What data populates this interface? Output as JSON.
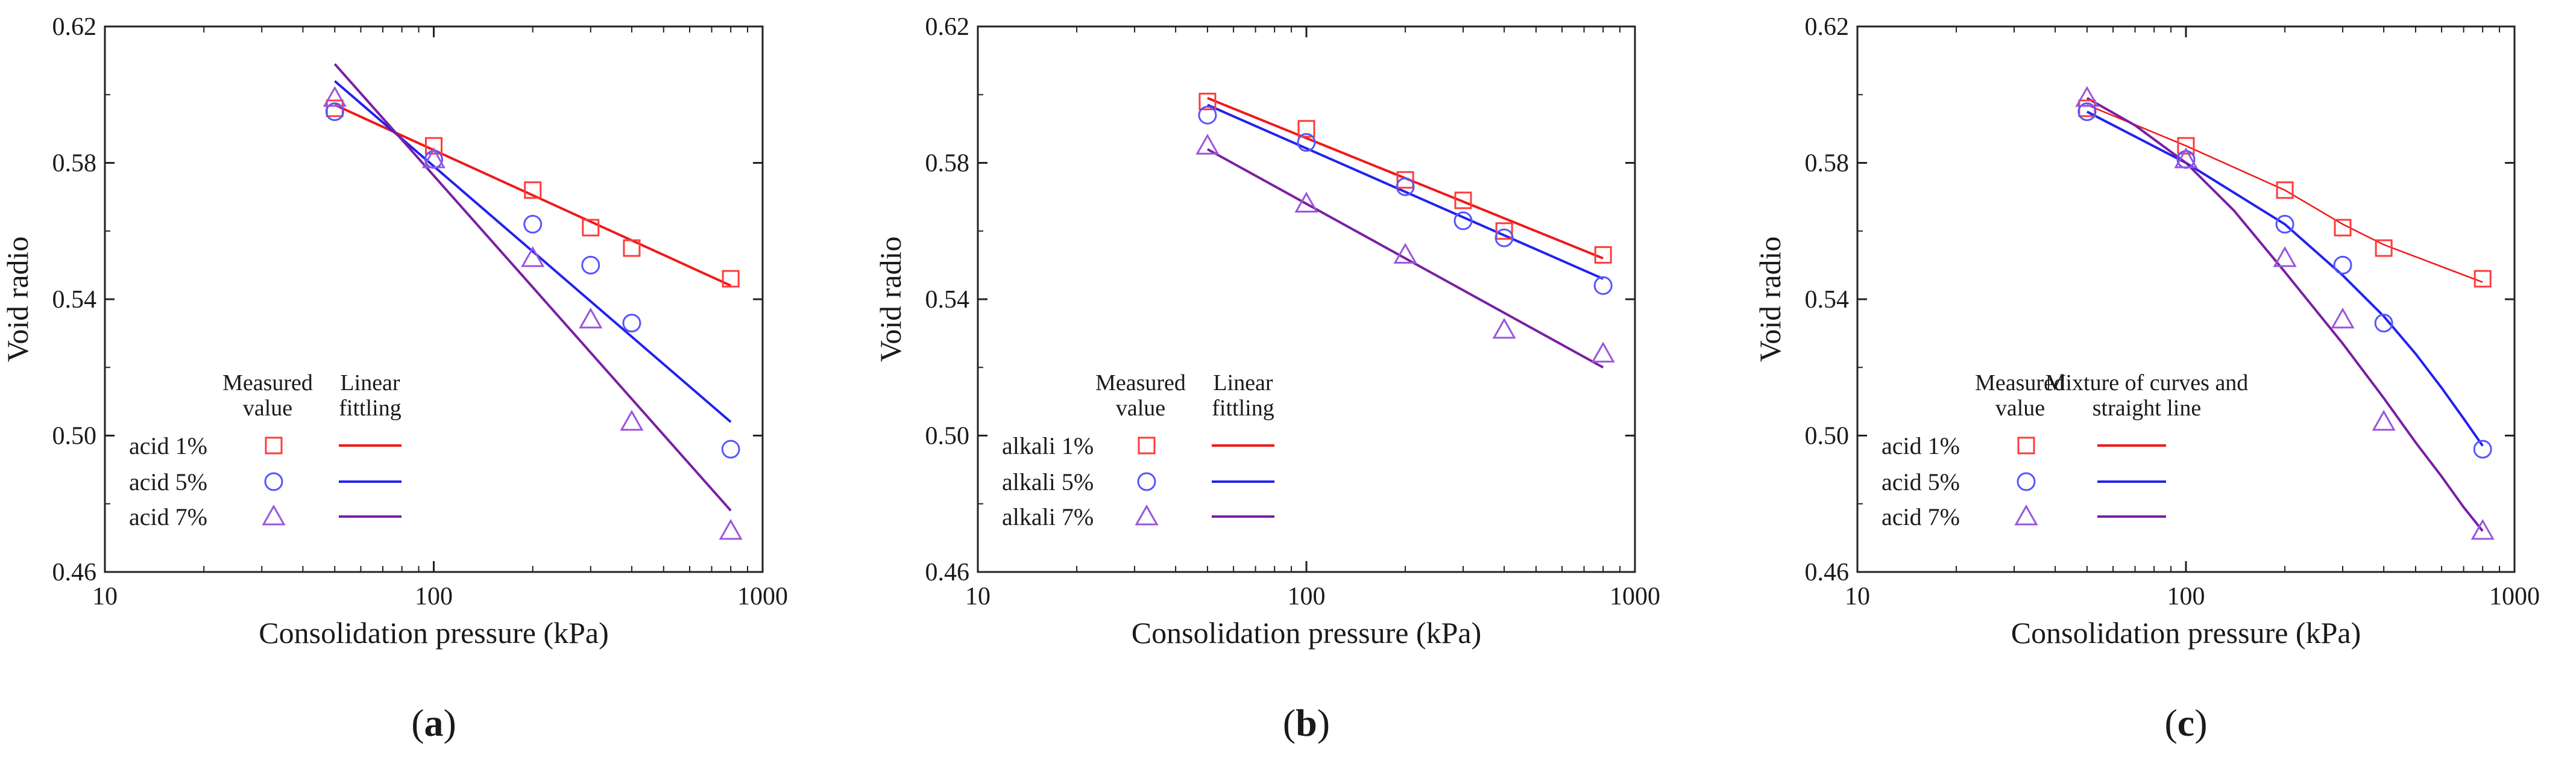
{
  "chart_data": [
    {
      "type": "scatter",
      "panel_label": "a",
      "xlabel": "Consolidation pressure (kPa)",
      "ylabel": "Void radio",
      "xscale": "log",
      "xlim": [
        10,
        1000
      ],
      "ylim": [
        0.46,
        0.62
      ],
      "xticks": [
        10,
        100,
        1000
      ],
      "xtick_labels": [
        "10",
        "100",
        "1000"
      ],
      "yticks": [
        0.46,
        0.5,
        0.54,
        0.58,
        0.62
      ],
      "ytick_labels": [
        "0.46",
        "0.50",
        "0.54",
        "0.58",
        "0.62"
      ],
      "legend": {
        "placement": "lower-left",
        "marker_header": "Measured value",
        "line_header": "Linear fittling"
      },
      "fit_type": "linear",
      "series": [
        {
          "name": "acid 1%",
          "color": "#ff3b3b",
          "line_color": "#f01818",
          "marker": "square",
          "x": [
            50,
            100,
            200,
            300,
            400,
            800
          ],
          "y": [
            0.596,
            0.585,
            0.572,
            0.561,
            0.555,
            0.546
          ],
          "fit": {
            "x": [
              50,
              800
            ],
            "y": [
              0.597,
              0.544
            ]
          }
        },
        {
          "name": "acid 5%",
          "color": "#5555ff",
          "line_color": "#2222ee",
          "marker": "circle",
          "x": [
            50,
            100,
            200,
            300,
            400,
            800
          ],
          "y": [
            0.595,
            0.581,
            0.562,
            0.55,
            0.533,
            0.496
          ],
          "fit": {
            "x": [
              50,
              800
            ],
            "y": [
              0.604,
              0.504
            ]
          }
        },
        {
          "name": "acid 7%",
          "color": "#9955dd",
          "line_color": "#7a1fa2",
          "marker": "triangle",
          "x": [
            50,
            100,
            200,
            300,
            400,
            800
          ],
          "y": [
            0.599,
            0.581,
            0.552,
            0.534,
            0.504,
            0.472
          ],
          "fit": {
            "x": [
              50,
              800
            ],
            "y": [
              0.609,
              0.478
            ]
          }
        }
      ]
    },
    {
      "type": "scatter",
      "panel_label": "b",
      "xlabel": "Consolidation pressure (kPa)",
      "ylabel": "Void radio",
      "xscale": "log",
      "xlim": [
        10,
        1000
      ],
      "ylim": [
        0.46,
        0.62
      ],
      "xticks": [
        10,
        100,
        1000
      ],
      "xtick_labels": [
        "10",
        "100",
        "1000"
      ],
      "yticks": [
        0.46,
        0.5,
        0.54,
        0.58,
        0.62
      ],
      "ytick_labels": [
        "0.46",
        "0.50",
        "0.54",
        "0.58",
        "0.62"
      ],
      "legend": {
        "placement": "lower-left",
        "marker_header": "Measured value",
        "line_header": "Linear fittling"
      },
      "fit_type": "linear",
      "series": [
        {
          "name": "alkali 1%",
          "color": "#ff3b3b",
          "line_color": "#f01818",
          "marker": "square",
          "x": [
            50,
            100,
            200,
            300,
            400,
            800
          ],
          "y": [
            0.598,
            0.59,
            0.575,
            0.569,
            0.56,
            0.553
          ],
          "fit": {
            "x": [
              50,
              800
            ],
            "y": [
              0.599,
              0.552
            ]
          }
        },
        {
          "name": "alkali 5%",
          "color": "#5555ff",
          "line_color": "#2222ee",
          "marker": "circle",
          "x": [
            50,
            100,
            200,
            300,
            400,
            800
          ],
          "y": [
            0.594,
            0.586,
            0.573,
            0.563,
            0.558,
            0.544
          ],
          "fit": {
            "x": [
              50,
              800
            ],
            "y": [
              0.597,
              0.546
            ]
          }
        },
        {
          "name": "alkali 7%",
          "color": "#9955dd",
          "line_color": "#7a1fa2",
          "marker": "triangle",
          "x": [
            50,
            100,
            200,
            400,
            800
          ],
          "y": [
            0.585,
            0.568,
            0.553,
            0.531,
            0.524
          ],
          "fit": {
            "x": [
              50,
              800
            ],
            "y": [
              0.584,
              0.52
            ]
          }
        }
      ]
    },
    {
      "type": "scatter",
      "panel_label": "c",
      "xlabel": "Consolidation pressure (kPa)",
      "ylabel": "Void radio",
      "xscale": "log",
      "xlim": [
        10,
        1000
      ],
      "ylim": [
        0.46,
        0.62
      ],
      "xticks": [
        10,
        100,
        1000
      ],
      "xtick_labels": [
        "10",
        "100",
        "1000"
      ],
      "yticks": [
        0.46,
        0.5,
        0.54,
        0.58,
        0.62
      ],
      "ytick_labels": [
        "0.46",
        "0.50",
        "0.54",
        "0.58",
        "0.62"
      ],
      "legend": {
        "placement": "lower-left",
        "marker_header": "Measured value",
        "line_header": "Mixture of curves and straight line"
      },
      "fit_type": "curve",
      "series": [
        {
          "name": "acid 1%",
          "color": "#ff3b3b",
          "line_color": "#f01818",
          "marker": "square",
          "x": [
            50,
            100,
            200,
            300,
            400,
            800
          ],
          "y": [
            0.596,
            0.585,
            0.572,
            0.561,
            0.555,
            0.546
          ],
          "fit": {
            "x": [
              50,
              100,
              200,
              300,
              400,
              800
            ],
            "y": [
              0.597,
              0.585,
              0.572,
              0.562,
              0.556,
              0.545
            ]
          }
        },
        {
          "name": "acid 5%",
          "color": "#5555ff",
          "line_color": "#2222ee",
          "marker": "circle",
          "x": [
            50,
            100,
            200,
            300,
            400,
            800
          ],
          "y": [
            0.595,
            0.581,
            0.562,
            0.55,
            0.533,
            0.496
          ],
          "fit": {
            "x": [
              50,
              100,
              200,
              300,
              400,
              500,
              600,
              700,
              800
            ],
            "y": [
              0.595,
              0.58,
              0.562,
              0.547,
              0.535,
              0.524,
              0.514,
              0.505,
              0.497
            ]
          }
        },
        {
          "name": "acid 7%",
          "color": "#9955dd",
          "line_color": "#7a1fa2",
          "marker": "triangle",
          "x": [
            50,
            100,
            200,
            300,
            400,
            800
          ],
          "y": [
            0.599,
            0.581,
            0.552,
            0.534,
            0.504,
            0.472
          ],
          "fit": {
            "x": [
              50,
              70,
              100,
              140,
              200,
              300,
              400,
              500,
              600,
              700,
              800
            ],
            "y": [
              0.599,
              0.591,
              0.58,
              0.566,
              0.548,
              0.527,
              0.511,
              0.498,
              0.488,
              0.479,
              0.472
            ]
          }
        }
      ]
    }
  ]
}
